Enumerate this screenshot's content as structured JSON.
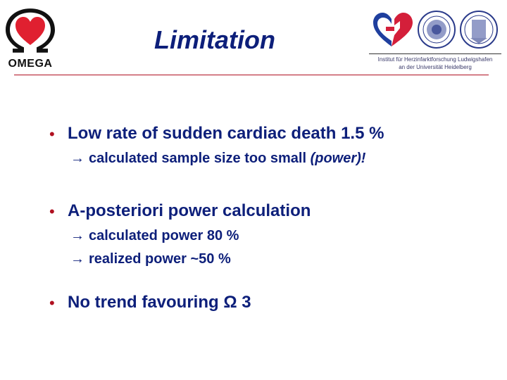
{
  "logo": {
    "word": "OMEGA"
  },
  "title": "Limitation",
  "institute": {
    "line1": "Institut für Herzinfarktforschung Ludwigshafen",
    "line2": "an der Universität Heidelberg"
  },
  "bullets": [
    {
      "text": "Low rate of sudden cardiac death 1.5 %",
      "subs": [
        {
          "arrow": "→",
          "text": "calculated sample size too small ",
          "emph": "(power)!"
        }
      ]
    },
    {
      "text": "A-posteriori power calculation",
      "subs": [
        {
          "arrow": "→",
          "text": "calculated power 80 %"
        },
        {
          "arrow": "→",
          "text": "realized power ~50 %"
        }
      ]
    },
    {
      "text": "No trend favouring Ω 3",
      "subs": []
    }
  ],
  "colors": {
    "text": "#0d1f7a",
    "accent": "#b01020"
  },
  "icons": {
    "bullet": "red-dot-bullet",
    "arrow": "right-arrow-icon"
  }
}
